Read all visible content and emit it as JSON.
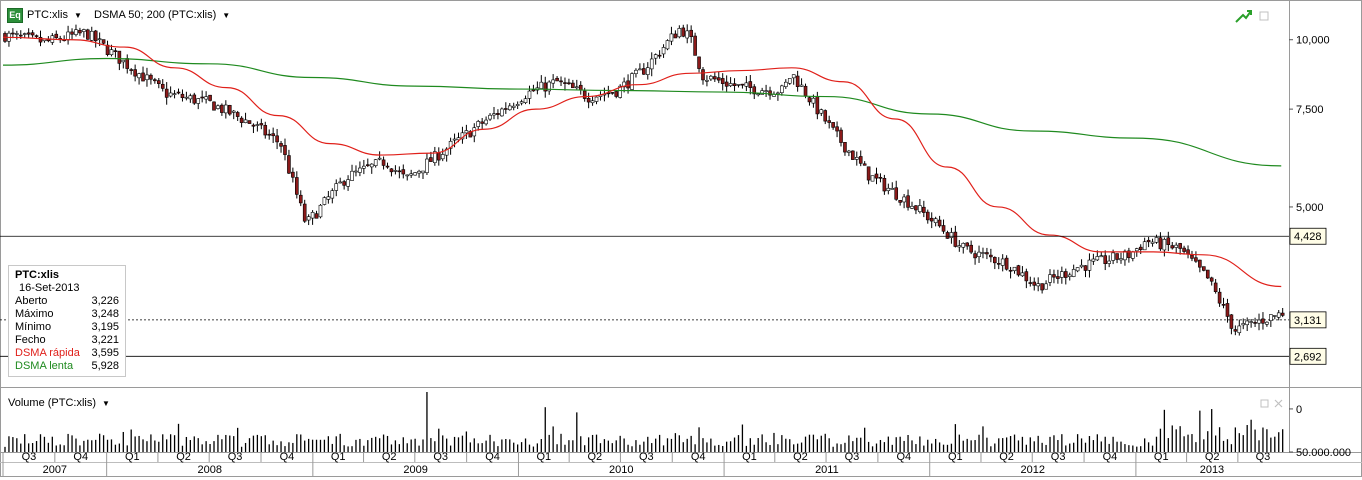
{
  "toolbar": {
    "eq_badge": "Eq",
    "symbol": "PTC:xlis",
    "indicator": "DSMA 50; 200 (PTC:xlis)",
    "icons": [
      "dropdown-caret-icon",
      "trend-up-icon",
      "window-restore-icon"
    ]
  },
  "legend": {
    "symbol": "PTC:xlis",
    "date": "16-Set-2013",
    "rows": [
      {
        "label": "Aberto",
        "value": "3,226",
        "color": "#000000"
      },
      {
        "label": "Máximo",
        "value": "3,248",
        "color": "#000000"
      },
      {
        "label": "Mínimo",
        "value": "3,195",
        "color": "#000000"
      },
      {
        "label": "Fecho",
        "value": "3,221",
        "color": "#000000"
      },
      {
        "label": "DSMA rápida",
        "value": "3,595",
        "color": "#e0201a"
      },
      {
        "label": "DSMA lenta",
        "value": "5,928",
        "color": "#1f8a1f"
      }
    ]
  },
  "volume_panel": {
    "title": "Volume (PTC:xlis)",
    "axis_labels": [
      "50.000.000",
      "0"
    ]
  },
  "price_markers": [
    "4,428",
    "3,131",
    "2,692"
  ],
  "timeline": {
    "quarters": [
      "Q3",
      "Q4",
      "Q1",
      "Q2",
      "Q3",
      "Q4",
      "Q1",
      "Q2",
      "Q3",
      "Q4",
      "Q1",
      "Q2",
      "Q3",
      "Q4",
      "Q1",
      "Q2",
      "Q3",
      "Q4",
      "Q1",
      "Q2",
      "Q3",
      "Q4",
      "Q1",
      "Q2",
      "Q3"
    ],
    "years": [
      "2007",
      "2008",
      "2009",
      "2010",
      "2011",
      "2012",
      "2013"
    ]
  },
  "colors": {
    "up_candle": "#ffffff",
    "down_candle": "#8b1a1a",
    "fast_ma": "#e0201a",
    "slow_ma": "#1f8a1f",
    "icon_green": "#2aa02a"
  },
  "chart_data": {
    "type": "candlestick",
    "title": "",
    "ylabel": "",
    "y_ticks": [
      5000,
      7500,
      10000
    ],
    "y_tick_labels": [
      "5,000",
      "7,500",
      "10,000"
    ],
    "y_scale": "log",
    "ylim": [
      2400,
      11500
    ],
    "x_range": [
      "2007-07-01",
      "2013-09-16"
    ],
    "price_anchors": {
      "x": [
        "2007-07-01",
        "2007-09-15",
        "2007-11-25",
        "2008-02-01",
        "2008-04-15",
        "2008-07-01",
        "2008-09-10",
        "2008-11-05",
        "2008-12-20",
        "2009-03-01",
        "2009-05-10",
        "2009-06-15",
        "2009-08-20",
        "2009-10-30",
        "2010-01-15",
        "2010-03-10",
        "2010-05-05",
        "2010-06-25",
        "2010-08-10",
        "2010-10-15",
        "2010-11-01",
        "2010-11-25",
        "2011-02-01",
        "2011-04-15",
        "2011-05-01",
        "2011-07-15",
        "2011-09-15",
        "2011-12-01",
        "2012-01-20",
        "2012-03-01",
        "2012-05-20",
        "2012-07-10",
        "2012-09-20",
        "2012-12-20",
        "2013-01-20",
        "2013-03-20",
        "2013-05-10",
        "2013-06-25",
        "2013-09-16"
      ],
      "y": [
        10200,
        9900,
        10300,
        9100,
        8000,
        7700,
        7100,
        6500,
        4650,
        5650,
        6050,
        5600,
        6300,
        7100,
        8000,
        8400,
        7900,
        8100,
        8800,
        10500,
        10100,
        8600,
        8200,
        8100,
        8700,
        6800,
        5700,
        5050,
        4600,
        4200,
        3950,
        3600,
        3900,
        4100,
        4350,
        4200,
        3700,
        3000,
        3221
      ]
    },
    "dsma_fast": {
      "name": "DSMA rápida",
      "x": [
        "2007-07-01",
        "2007-11-01",
        "2008-02-01",
        "2008-05-01",
        "2008-08-01",
        "2008-11-01",
        "2009-02-01",
        "2009-05-01",
        "2009-08-01",
        "2009-11-01",
        "2010-02-01",
        "2010-05-01",
        "2010-08-01",
        "2010-11-01",
        "2011-02-01",
        "2011-05-01",
        "2011-08-01",
        "2011-11-01",
        "2012-02-01",
        "2012-05-01",
        "2012-08-01",
        "2012-11-01",
        "2013-02-01",
        "2013-05-01",
        "2013-09-16"
      ],
      "y": [
        10100,
        10000,
        9700,
        8900,
        8200,
        7300,
        6500,
        6200,
        6250,
        6900,
        7500,
        7900,
        8300,
        8700,
        8800,
        8900,
        8400,
        7200,
        5900,
        5000,
        4450,
        4150,
        4150,
        4100,
        3595
      ]
    },
    "dsma_slow": {
      "name": "DSMA lenta",
      "x": [
        "2007-07-01",
        "2008-01-01",
        "2008-07-01",
        "2009-01-01",
        "2009-07-01",
        "2010-01-01",
        "2010-07-01",
        "2011-01-01",
        "2011-07-01",
        "2012-01-01",
        "2012-07-01",
        "2013-01-01",
        "2013-09-16"
      ],
      "y": [
        9000,
        9250,
        9050,
        8550,
        8250,
        8150,
        8100,
        8050,
        7900,
        7350,
        6850,
        6650,
        5928
      ]
    },
    "volume": {
      "unit": "shares",
      "ylim": [
        0,
        65000000
      ],
      "y_ticks": [
        0,
        50000000
      ],
      "typical": 17000000,
      "peaks": [
        {
          "x": "2009-07-22",
          "value": 70000000
        },
        {
          "x": "2010-02-15",
          "value": 52000000
        },
        {
          "x": "2010-04-10",
          "value": 46000000
        },
        {
          "x": "2013-04-20",
          "value": 48000000
        }
      ]
    },
    "horizontal_levels": [
      4428,
      3131,
      2692
    ]
  }
}
